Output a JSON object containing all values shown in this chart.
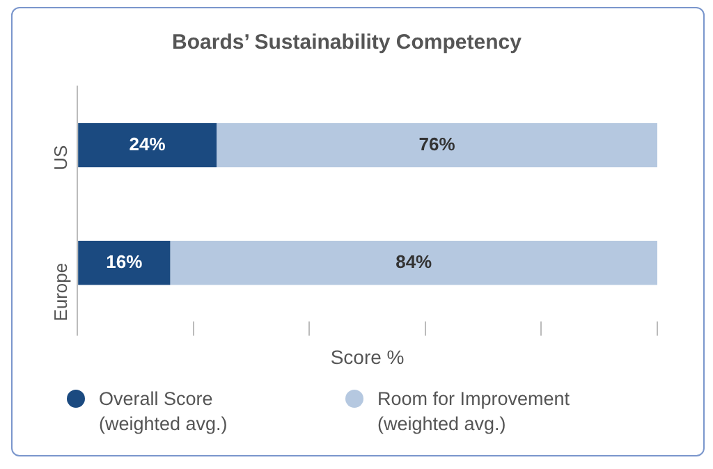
{
  "chart_data": {
    "type": "bar",
    "orientation": "horizontal",
    "stacked": true,
    "title": "Boards’ Sustainability Competency",
    "xlabel": "Score %",
    "categories": [
      "US",
      "Europe"
    ],
    "series": [
      {
        "name": "Overall Score (weighted avg.)",
        "color": "#1b4a80",
        "values": [
          24,
          16
        ],
        "value_labels": [
          "24%",
          "16%"
        ]
      },
      {
        "name": "Room for Improvement (weighted avg.)",
        "color": "#b5c8e0",
        "values": [
          76,
          84
        ],
        "value_labels": [
          "76%",
          "84%"
        ]
      }
    ],
    "xlim": [
      0,
      100
    ],
    "xticks": [
      {
        "value": 0,
        "label": null
      },
      {
        "value": 20,
        "label": null
      },
      {
        "value": 40,
        "label": null
      },
      {
        "value": 60,
        "label": null
      },
      {
        "value": 80,
        "label": null
      },
      {
        "value": 100,
        "label": null
      }
    ],
    "tick_labels": "y",
    "grid": false,
    "legend": "bottom"
  }
}
